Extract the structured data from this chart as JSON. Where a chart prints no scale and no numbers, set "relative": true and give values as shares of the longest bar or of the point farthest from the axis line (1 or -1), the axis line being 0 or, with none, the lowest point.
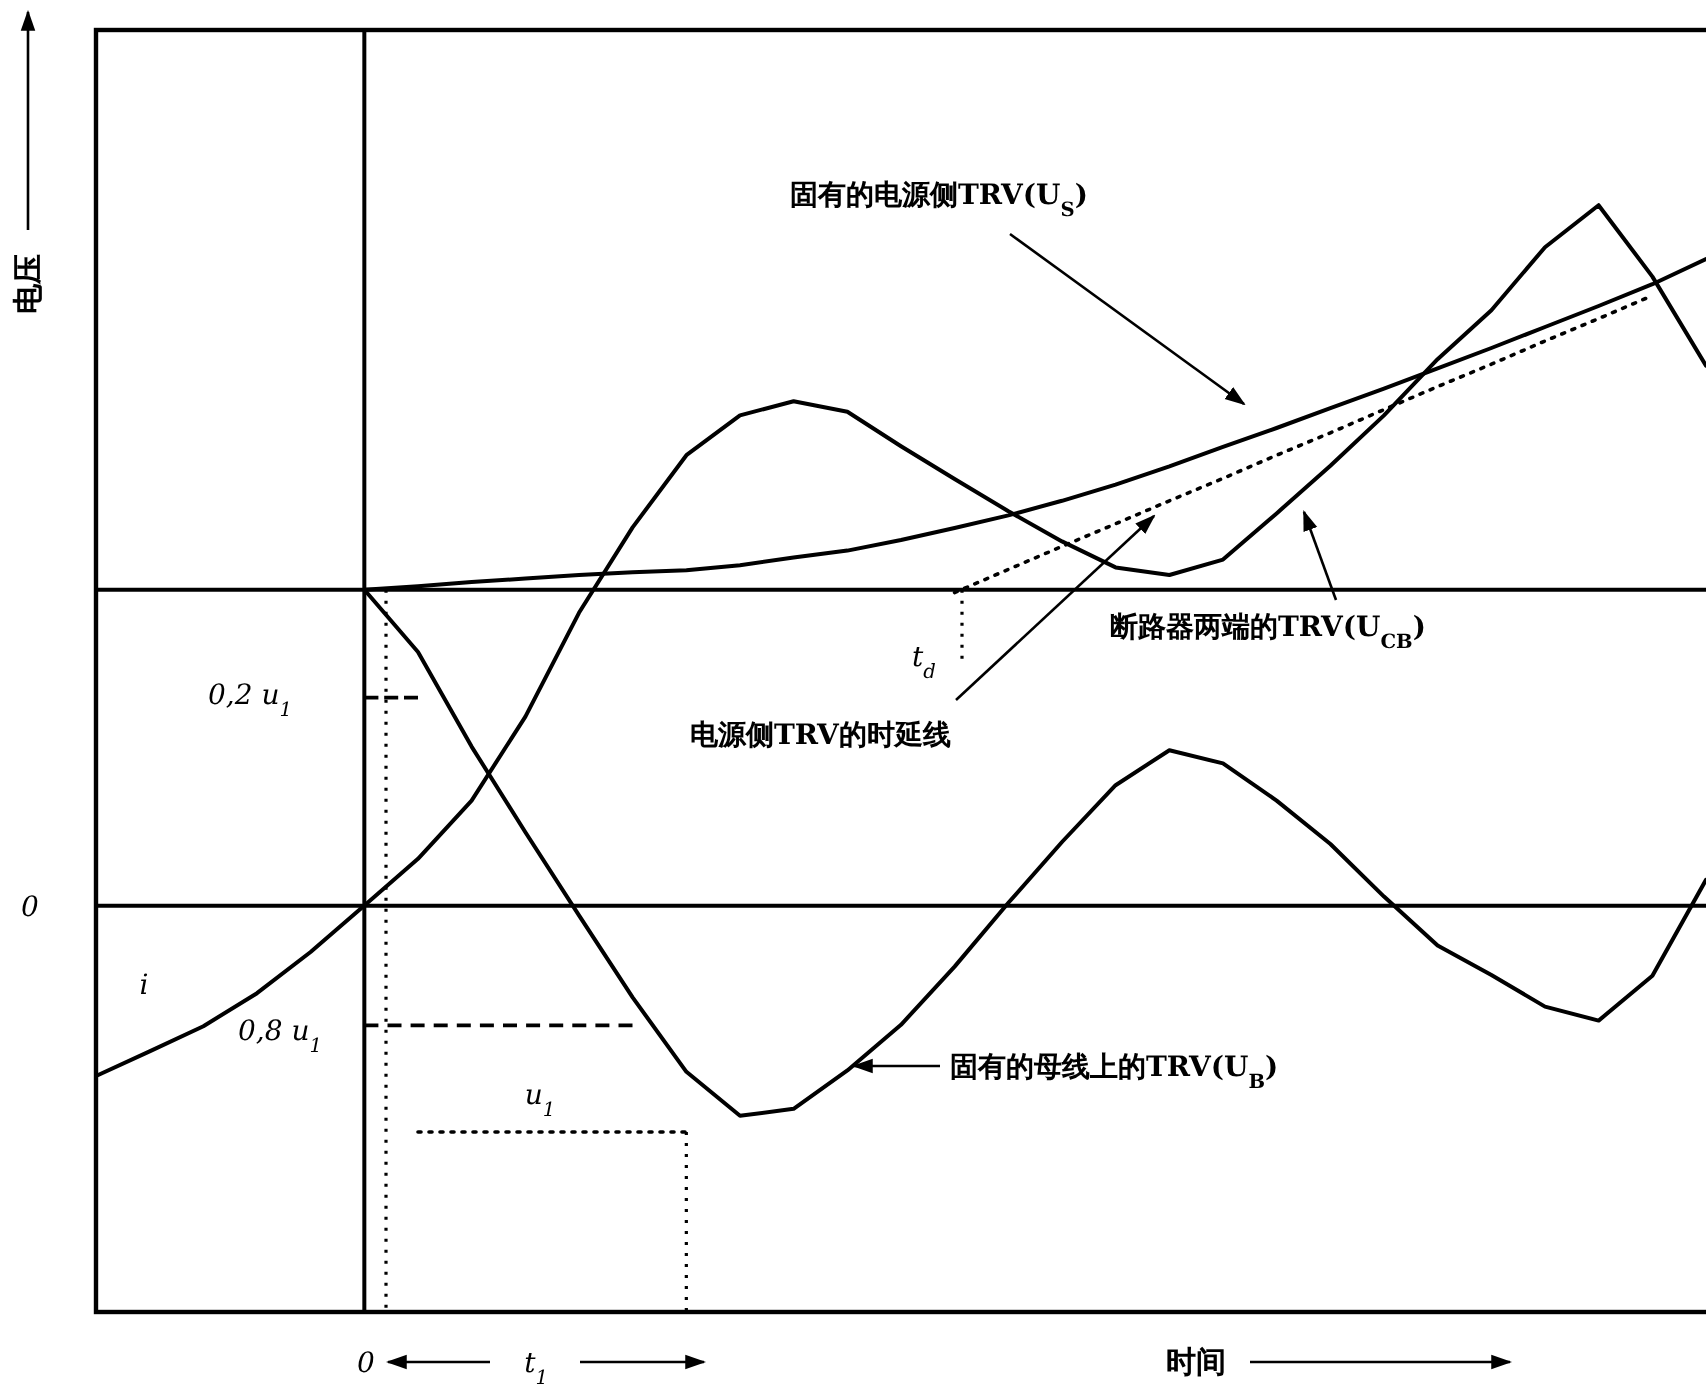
{
  "chart_data": {
    "type": "line",
    "relative": true,
    "ylabel": "电压",
    "categories": [
      null,
      null,
      null,
      null,
      null,
      null,
      null,
      null,
      null,
      null,
      null,
      null,
      null,
      null,
      null,
      null,
      null,
      null,
      null,
      null,
      null,
      null,
      null,
      null,
      null,
      null,
      null,
      null,
      null,
      null,
      null
    ],
    "series": [
      {
        "name": "断路器两端的TRV(U$_{CB}$)",
        "color": "#000000",
        "values": [
          -0.243,
          -0.208,
          -0.172,
          -0.125,
          -0.066,
          0,
          0.067,
          0.15,
          0.27,
          0.418,
          0.54,
          0.643,
          0.7,
          0.72,
          0.705,
          0.656,
          0.609,
          0.563,
          0.52,
          0.483,
          0.472,
          0.494,
          0.56,
          0.628,
          0.7,
          0.78,
          0.85,
          0.94,
          1,
          0.898,
          0.771
        ]
      },
      {
        "name": "固有的母线上的TRV(U$_{B}$)",
        "color": "#000000",
        "values": [
          null,
          null,
          null,
          null,
          null,
          0.451,
          0.362,
          0.227,
          0.105,
          -0.014,
          -0.131,
          -0.237,
          -0.3,
          -0.29,
          -0.235,
          -0.17,
          -0.087,
          0.004,
          0.091,
          0.172,
          0.222,
          0.203,
          0.15,
          0.088,
          0.013,
          -0.057,
          -0.099,
          -0.144,
          -0.164,
          -0.1,
          0.037
        ]
      },
      {
        "name": "固有的电源侧TRV(U$_{S}$)",
        "color": "#000000",
        "values": [
          null,
          null,
          null,
          null,
          null,
          0.451,
          0.456,
          0.462,
          0.467,
          0.472,
          0.476,
          0.479,
          0.486,
          0.497,
          0.507,
          0.522,
          0.539,
          0.557,
          0.578,
          0.601,
          0.627,
          0.655,
          0.682,
          0.71,
          0.738,
          0.767,
          0.796,
          0.826,
          0.856,
          0.887,
          0.923
        ]
      },
      {
        "name": "电源侧TRV的时延线",
        "color": "#000000",
        "line_style": "dotted",
        "values": [
          null,
          null,
          null,
          null,
          null,
          null,
          null,
          null,
          null,
          null,
          null,
          null,
          null,
          null,
          null,
          null,
          0.447,
          0.48,
          0.513,
          0.545,
          0.578,
          0.61,
          0.643,
          0.675,
          0.708,
          0.741,
          0.773,
          0.806,
          0.838,
          0.871,
          null
        ]
      },
      {
        "color": "#000000",
        "line_style": "dashed",
        "values": [
          null,
          null,
          null,
          null,
          null,
          0.297,
          0.297,
          null,
          null,
          null,
          null,
          null,
          null,
          null,
          null,
          null,
          null,
          null,
          null,
          null,
          null,
          null,
          null,
          null,
          null,
          null,
          null,
          null,
          null,
          null,
          null
        ]
      },
      {
        "color": "#000000",
        "line_style": "dashed",
        "values": [
          null,
          null,
          null,
          null,
          null,
          -0.171,
          -0.171,
          -0.171,
          -0.171,
          -0.171,
          -0.171,
          null,
          null,
          null,
          null,
          null,
          null,
          null,
          null,
          null,
          null,
          null,
          null,
          null,
          null,
          null,
          null,
          null,
          null,
          null,
          null
        ]
      },
      {
        "color": "#000000",
        "line_style": "dotted",
        "values": [
          null,
          null,
          null,
          null,
          null,
          null,
          -0.323,
          -0.323,
          -0.323,
          -0.323,
          -0.323,
          -0.323,
          null,
          null,
          null,
          null,
          null,
          null,
          null,
          null,
          null,
          null,
          null,
          null,
          null,
          null,
          null,
          null,
          null,
          null,
          null
        ]
      }
    ],
    "ref_lines": [
      {
        "axis": "y",
        "value": 0.451
      }
    ],
    "annotations": [
      "0",
      "0,2 u$_{1}$",
      "0,8 u$_{1}$",
      "u$_{1}$",
      "i",
      "t$_{d}$",
      "0",
      "t$_{1}$",
      "时间"
    ]
  }
}
